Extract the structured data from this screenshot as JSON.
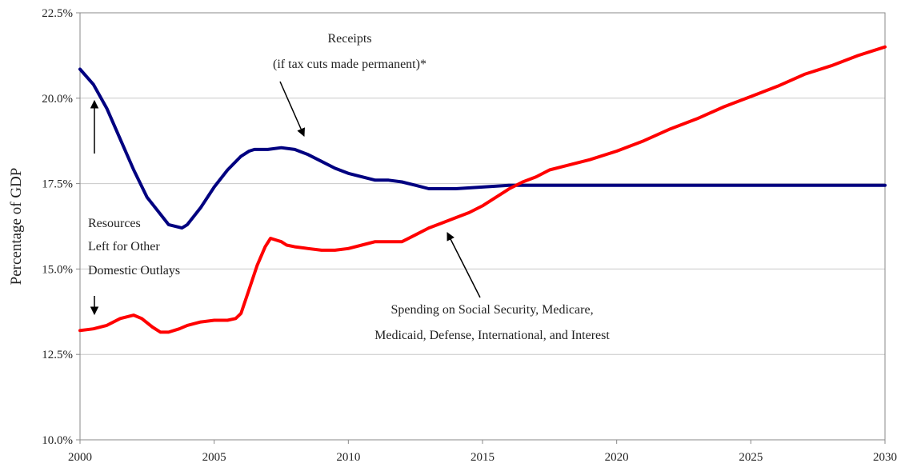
{
  "chart_data": {
    "type": "line",
    "ylabel": "Percentage of GDP",
    "xlim": [
      2000,
      2030
    ],
    "ylim": [
      10.0,
      22.5
    ],
    "grid": "horizontal",
    "x_ticks": [
      "2000",
      "2005",
      "2010",
      "2015",
      "2020",
      "2025",
      "2030"
    ],
    "y_ticks": [
      "10.0%",
      "12.5%",
      "15.0%",
      "17.5%",
      "20.0%",
      "22.5%"
    ],
    "series": [
      {
        "color": "#000080",
        "x": [
          2000,
          2000.5,
          2001,
          2001.5,
          2002,
          2002.5,
          2003,
          2003.3,
          2003.8,
          2004,
          2004.5,
          2005,
          2005.5,
          2006,
          2006.3,
          2006.5,
          2007,
          2007.5,
          2008,
          2008.5,
          2009,
          2009.5,
          2010,
          2010.5,
          2011,
          2011.5,
          2012,
          2012.5,
          2013,
          2013.5,
          2014,
          2015,
          2016,
          2017,
          2018,
          2020,
          2022,
          2025,
          2028,
          2030
        ],
        "y": [
          20.85,
          20.4,
          19.7,
          18.8,
          17.9,
          17.1,
          16.6,
          16.3,
          16.2,
          16.3,
          16.8,
          17.4,
          17.9,
          18.3,
          18.45,
          18.5,
          18.5,
          18.55,
          18.5,
          18.35,
          18.15,
          17.95,
          17.8,
          17.7,
          17.6,
          17.6,
          17.55,
          17.45,
          17.35,
          17.35,
          17.35,
          17.4,
          17.45,
          17.45,
          17.45,
          17.45,
          17.45,
          17.45,
          17.45,
          17.45
        ]
      },
      {
        "color": "#ff0000",
        "x": [
          2000,
          2000.5,
          2001,
          2001.5,
          2002,
          2002.3,
          2002.7,
          2003,
          2003.3,
          2003.7,
          2004,
          2004.5,
          2005,
          2005.5,
          2005.8,
          2006,
          2006.3,
          2006.6,
          2006.9,
          2007.1,
          2007.3,
          2007.5,
          2007.7,
          2008,
          2008.5,
          2009,
          2009.5,
          2010,
          2010.5,
          2011,
          2011.5,
          2012,
          2012.5,
          2013,
          2013.5,
          2014,
          2014.5,
          2015,
          2015.5,
          2016,
          2016.5,
          2017,
          2017.5,
          2018,
          2019,
          2020,
          2021,
          2022,
          2023,
          2024,
          2025,
          2026,
          2027,
          2028,
          2029,
          2030
        ],
        "y": [
          13.2,
          13.25,
          13.35,
          13.55,
          13.65,
          13.55,
          13.3,
          13.15,
          13.15,
          13.25,
          13.35,
          13.45,
          13.5,
          13.5,
          13.55,
          13.7,
          14.4,
          15.1,
          15.65,
          15.9,
          15.85,
          15.8,
          15.7,
          15.65,
          15.6,
          15.55,
          15.55,
          15.6,
          15.7,
          15.8,
          15.8,
          15.8,
          16.0,
          16.2,
          16.35,
          16.5,
          16.65,
          16.85,
          17.1,
          17.35,
          17.55,
          17.7,
          17.9,
          18.0,
          18.2,
          18.45,
          18.75,
          19.1,
          19.4,
          19.75,
          20.05,
          20.35,
          20.7,
          20.95,
          21.25,
          21.5
        ]
      }
    ],
    "annotations": {
      "receipts_line1": "Receipts",
      "receipts_line2": "(if tax cuts made permanent)*",
      "resources_line1": "Resources",
      "resources_line2": "Left for Other",
      "resources_line3": "Domestic Outlays",
      "spending_line1": "Spending on Social Security, Medicare,",
      "spending_line2": "Medicaid, Defense, International, and Interest"
    }
  }
}
